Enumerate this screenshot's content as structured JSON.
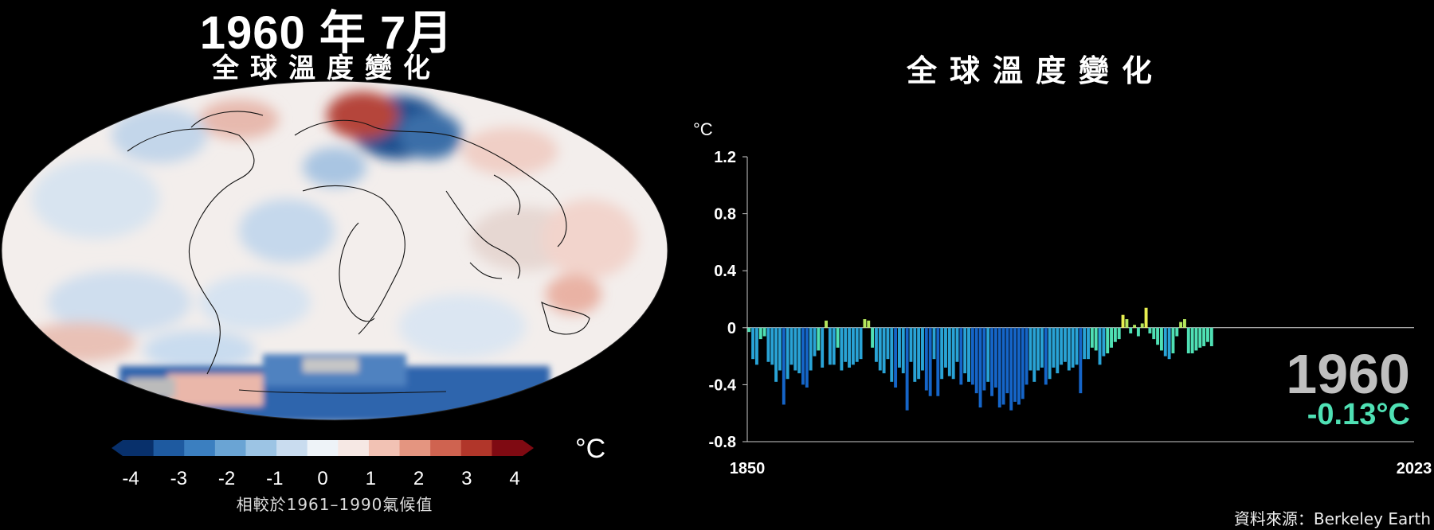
{
  "map": {
    "title_year": "1960 年 7月",
    "title_sub": "全球溫度變化",
    "colorbar": {
      "ticks": [
        "-4",
        "-3",
        "-2",
        "-1",
        "0",
        "1",
        "2",
        "3",
        "4"
      ],
      "unit": "°C",
      "note": "相較於1961–1990氣候值",
      "colors": [
        "#08306b",
        "#1e5aa0",
        "#3b7fc0",
        "#6aa4d4",
        "#9cc4e4",
        "#c9dcef",
        "#eef3f8",
        "#f6e8e4",
        "#f2c2b4",
        "#e49580",
        "#cf6350",
        "#b1362a",
        "#7f0a12"
      ]
    }
  },
  "chart_data": {
    "type": "bar",
    "title": "全球溫度變化",
    "ylabel": "°C",
    "xlim": [
      1850,
      2023
    ],
    "ylim": [
      -0.8,
      1.2
    ],
    "yticks": [
      "1.2",
      "0.8",
      "0.4",
      "0",
      "-0.4",
      "-0.8"
    ],
    "xticks": [
      "1850",
      "2023"
    ],
    "x_start": 1850,
    "values": [
      -0.03,
      -0.22,
      -0.26,
      -0.08,
      -0.06,
      -0.24,
      -0.26,
      -0.38,
      -0.3,
      -0.54,
      -0.36,
      -0.26,
      -0.3,
      -0.32,
      -0.4,
      -0.42,
      -0.3,
      -0.2,
      -0.16,
      -0.28,
      0.05,
      -0.26,
      -0.26,
      -0.14,
      -0.3,
      -0.24,
      -0.28,
      -0.26,
      -0.24,
      -0.22,
      0.06,
      0.05,
      -0.14,
      -0.24,
      -0.3,
      -0.32,
      -0.22,
      -0.38,
      -0.42,
      -0.28,
      -0.32,
      -0.58,
      -0.24,
      -0.38,
      -0.36,
      -0.3,
      -0.44,
      -0.48,
      -0.22,
      -0.48,
      -0.36,
      -0.28,
      -0.34,
      -0.36,
      -0.24,
      -0.4,
      -0.32,
      -0.38,
      -0.4,
      -0.46,
      -0.56,
      -0.44,
      -0.38,
      -0.48,
      -0.42,
      -0.56,
      -0.54,
      -0.46,
      -0.58,
      -0.52,
      -0.54,
      -0.5,
      -0.4,
      -0.3,
      -0.38,
      -0.3,
      -0.28,
      -0.4,
      -0.36,
      -0.28,
      -0.32,
      -0.26,
      -0.24,
      -0.3,
      -0.28,
      -0.26,
      -0.46,
      -0.22,
      -0.22,
      -0.14,
      -0.16,
      -0.26,
      -0.2,
      -0.18,
      -0.14,
      -0.1,
      -0.08,
      0.09,
      0.06,
      -0.04,
      0.02,
      -0.06,
      0.03,
      0.14,
      -0.04,
      -0.08,
      -0.12,
      -0.16,
      -0.2,
      -0.22,
      -0.18,
      -0.06,
      0.04,
      0.06,
      -0.18,
      -0.18,
      -0.16,
      -0.14,
      -0.13,
      -0.1,
      -0.13
    ],
    "color_scale": {
      "neg_deep": "#1565c8",
      "neg_mid": "#29a3d6",
      "neg_light": "#4fe0b4",
      "pos_light": "#b4e55c",
      "pos_mid": "#e8ef50"
    },
    "current": {
      "year": "1960",
      "value": "-0.13°C"
    }
  },
  "source": "資料來源：Berkeley Earth"
}
